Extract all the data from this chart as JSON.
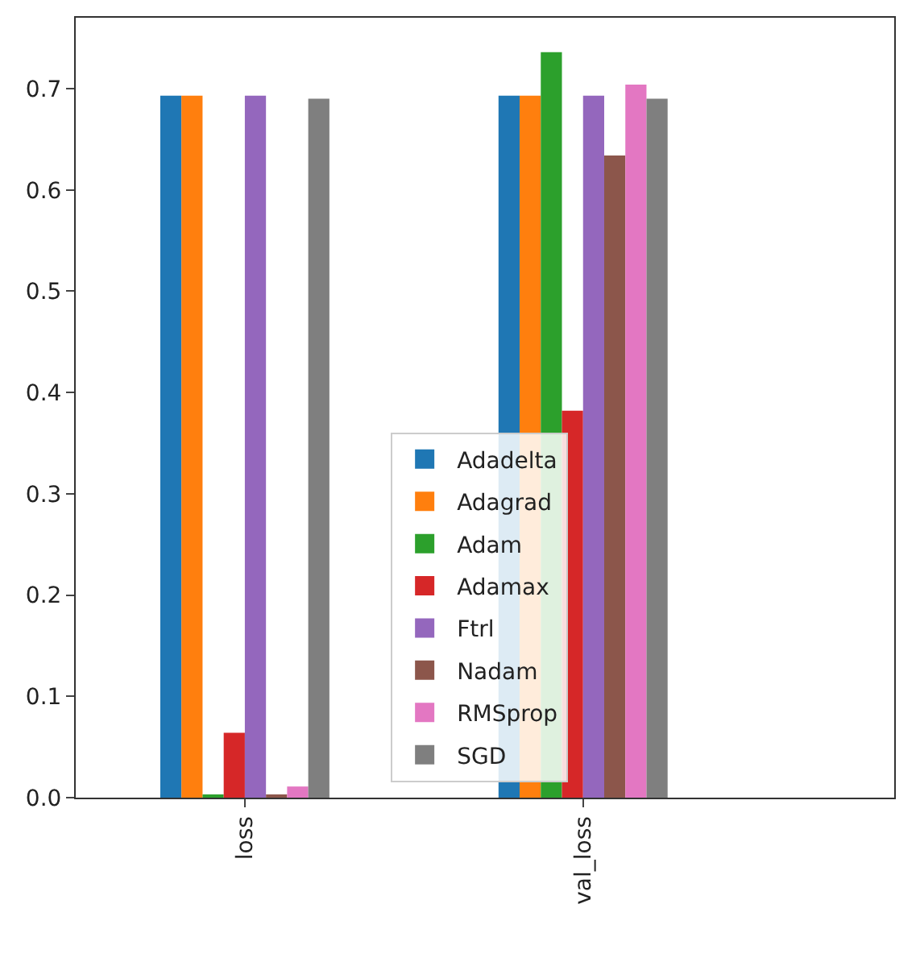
{
  "chart_data": {
    "type": "bar",
    "categories": [
      "loss",
      "val_loss"
    ],
    "series": [
      {
        "name": "Adadelta",
        "color": "#1f77b4",
        "values": [
          0.693,
          0.693
        ]
      },
      {
        "name": "Adagrad",
        "color": "#ff7f0e",
        "values": [
          0.693,
          0.693
        ]
      },
      {
        "name": "Adam",
        "color": "#2ca02c",
        "values": [
          0.003,
          0.736
        ]
      },
      {
        "name": "Adamax",
        "color": "#d62728",
        "values": [
          0.064,
          0.382
        ]
      },
      {
        "name": "Ftrl",
        "color": "#9467bd",
        "values": [
          0.693,
          0.693
        ]
      },
      {
        "name": "Nadam",
        "color": "#8c564b",
        "values": [
          0.003,
          0.634
        ]
      },
      {
        "name": "RMSprop",
        "color": "#e377c2",
        "values": [
          0.011,
          0.704
        ]
      },
      {
        "name": "SGD",
        "color": "#7f7f7f",
        "values": [
          0.69,
          0.69
        ]
      }
    ],
    "ylim": [
      0,
      0.77
    ],
    "yticks": [
      {
        "value": 0,
        "label": "0.0"
      },
      0.1,
      0.2,
      0.3,
      0.4,
      0.5,
      0.6,
      0.7
    ],
    "legend": "center"
  }
}
